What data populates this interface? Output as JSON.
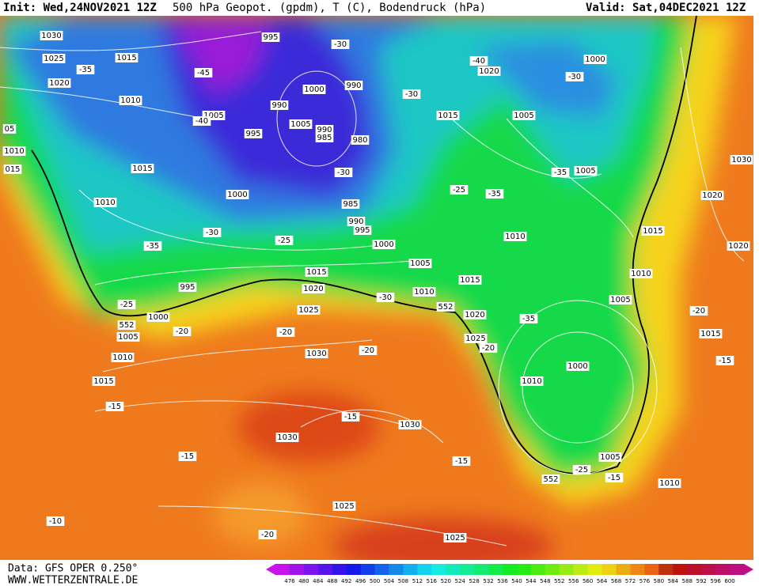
{
  "header": {
    "init": "Init: Wed,24NOV2021 12Z",
    "title": "500 hPa Geopot. (gpdm), T (C), Bodendruck (hPa)",
    "valid": "Valid: Sat,04DEC2021 12Z"
  },
  "footer": {
    "source": "Data: GFS OPER 0.250°",
    "site": "WWW.WETTERZENTRALE.DE"
  },
  "colorbar": {
    "ticks": [
      476,
      480,
      484,
      488,
      492,
      496,
      500,
      504,
      508,
      512,
      516,
      520,
      524,
      528,
      532,
      536,
      540,
      544,
      548,
      552,
      556,
      560,
      564,
      568,
      572,
      576,
      580,
      584,
      588,
      592,
      596,
      600
    ]
  },
  "map": {
    "labels": [
      "1030",
      "1025",
      "1015",
      "1020",
      "-35",
      "1010",
      "995",
      "-30",
      "-45",
      "1005",
      "-40",
      "990",
      "1000",
      "990",
      "1005",
      "990",
      "985",
      "995",
      "980",
      "-30",
      "1000",
      "985",
      "990",
      "995",
      "1000",
      "-30",
      "-25",
      "-35",
      "1015",
      "1010",
      "995",
      "1015",
      "1020",
      "1025",
      "-25",
      "552",
      "1000",
      "1005",
      "-20",
      "-20",
      "1010",
      "1015",
      "1030",
      "-20",
      "-15",
      "-15",
      "1030",
      "1030",
      "-15",
      "-15",
      "1025",
      "-20",
      "-10",
      "1025",
      "-30",
      "1010",
      "1005",
      "552",
      "1015",
      "1020",
      "1025",
      "-20",
      "-25",
      "-35",
      "1015",
      "-30",
      "-40",
      "1020",
      "1000",
      "-30",
      "1005",
      "-35",
      "1005",
      "1010",
      "-35",
      "1000",
      "1010",
      "1005",
      "-25",
      "552",
      "-15",
      "1010",
      "1015",
      "1010",
      "1005",
      "-20",
      "1015",
      "-15",
      "1020",
      "1030",
      "1020",
      "1010",
      "015",
      "05"
    ]
  }
}
